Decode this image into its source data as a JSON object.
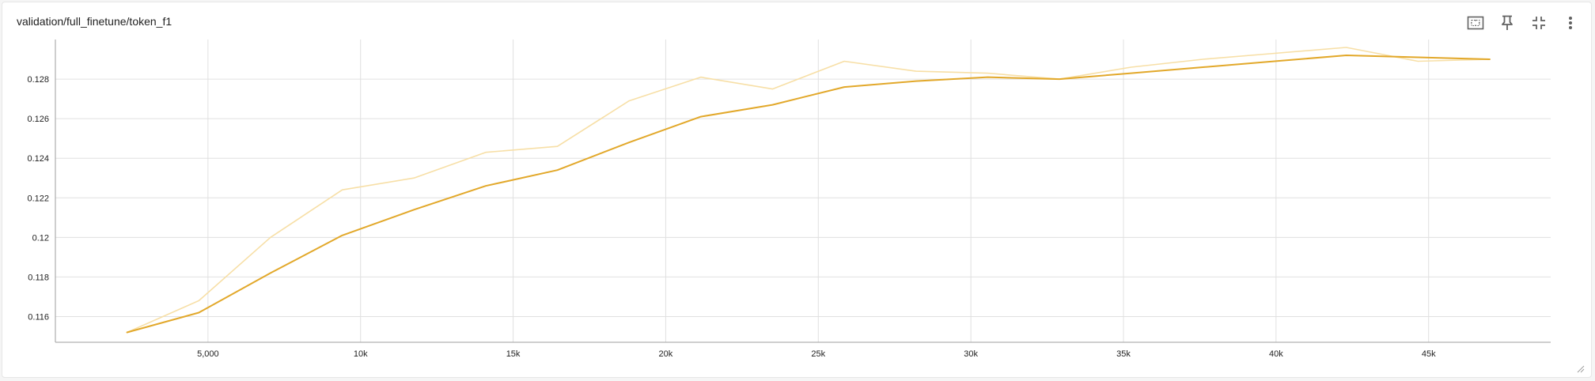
{
  "card": {
    "title": "validation/full_finetune/token_f1"
  },
  "toolbar": {
    "icons": [
      "fit-domain-icon",
      "pin-icon",
      "collapse-icon",
      "more-vert-icon"
    ]
  },
  "colors": {
    "smoothed": "#e2a82a",
    "raw": "#f7dfa6",
    "grid": "#e0e0e0",
    "axis": "#9e9e9e",
    "tick_text": "#212121",
    "icon": "#616161"
  },
  "chart_data": {
    "type": "line",
    "title": "validation/full_finetune/token_f1",
    "xlabel": "",
    "ylabel": "",
    "xlim": [
      0,
      49000
    ],
    "ylim": [
      0.1147,
      0.13
    ],
    "x_ticks": [
      5000,
      10000,
      15000,
      20000,
      25000,
      30000,
      35000,
      40000,
      45000
    ],
    "x_tick_labels": [
      "5,000",
      "10k",
      "15k",
      "20k",
      "25k",
      "30k",
      "35k",
      "40k",
      "45k"
    ],
    "y_ticks": [
      0.116,
      0.118,
      0.12,
      0.122,
      0.124,
      0.126,
      0.128
    ],
    "y_tick_labels": [
      "0.116",
      "0.118",
      "0.12",
      "0.122",
      "0.124",
      "0.126",
      "0.128"
    ],
    "grid": true,
    "series": [
      {
        "role": "raw",
        "x": [
          2350,
          4700,
          7050,
          9400,
          11750,
          14100,
          16450,
          18800,
          21150,
          23500,
          25850,
          28200,
          30550,
          32900,
          35250,
          37600,
          39950,
          42300,
          44650,
          47000
        ],
        "values": [
          0.1152,
          0.1168,
          0.12,
          0.1224,
          0.123,
          0.1243,
          0.1246,
          0.1269,
          0.1281,
          0.1275,
          0.1289,
          0.1284,
          0.1283,
          0.128,
          0.1286,
          0.129,
          0.1293,
          0.1296,
          0.1289,
          0.129
        ]
      },
      {
        "role": "smoothed",
        "x": [
          2350,
          4700,
          7050,
          9400,
          11750,
          14100,
          16450,
          18800,
          21150,
          23500,
          25850,
          28200,
          30550,
          32900,
          35250,
          37600,
          39950,
          42300,
          44650,
          47000
        ],
        "values": [
          0.1152,
          0.1162,
          0.1182,
          0.1201,
          0.1214,
          0.1226,
          0.1234,
          0.1248,
          0.1261,
          0.1267,
          0.1276,
          0.1279,
          0.1281,
          0.128,
          0.1283,
          0.1286,
          0.1289,
          0.1292,
          0.1291,
          0.129
        ]
      }
    ]
  }
}
